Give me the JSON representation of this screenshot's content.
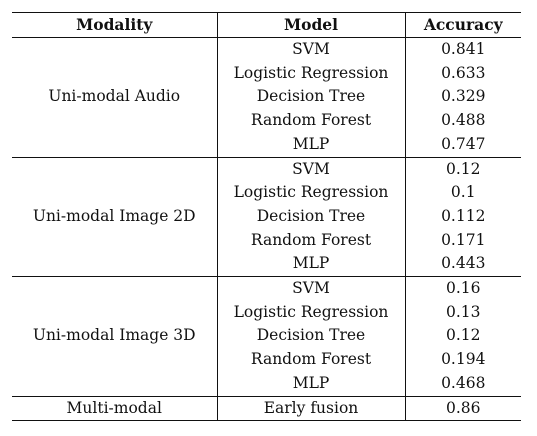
{
  "table": {
    "headers": [
      "Modality",
      "Model",
      "Accuracy"
    ],
    "groups": [
      {
        "modality": "Uni-modal Audio",
        "rows": [
          {
            "model": "SVM",
            "accuracy": "0.841"
          },
          {
            "model": "Logistic Regression",
            "accuracy": "0.633"
          },
          {
            "model": "Decision Tree",
            "accuracy": "0.329"
          },
          {
            "model": "Random Forest",
            "accuracy": "0.488"
          },
          {
            "model": "MLP",
            "accuracy": "0.747"
          }
        ]
      },
      {
        "modality": "Uni-modal Image 2D",
        "rows": [
          {
            "model": "SVM",
            "accuracy": "0.12"
          },
          {
            "model": "Logistic Regression",
            "accuracy": "0.1"
          },
          {
            "model": "Decision Tree",
            "accuracy": "0.112"
          },
          {
            "model": "Random Forest",
            "accuracy": "0.171"
          },
          {
            "model": "MLP",
            "accuracy": "0.443"
          }
        ]
      },
      {
        "modality": "Uni-modal Image 3D",
        "rows": [
          {
            "model": "SVM",
            "accuracy": "0.16"
          },
          {
            "model": "Logistic Regression",
            "accuracy": "0.13"
          },
          {
            "model": "Decision Tree",
            "accuracy": "0.12"
          },
          {
            "model": "Random Forest",
            "accuracy": "0.194"
          },
          {
            "model": "MLP",
            "accuracy": "0.468"
          }
        ]
      },
      {
        "modality": "Multi-modal",
        "rows": [
          {
            "model": "Early fusion",
            "accuracy": "0.86"
          }
        ]
      }
    ]
  }
}
